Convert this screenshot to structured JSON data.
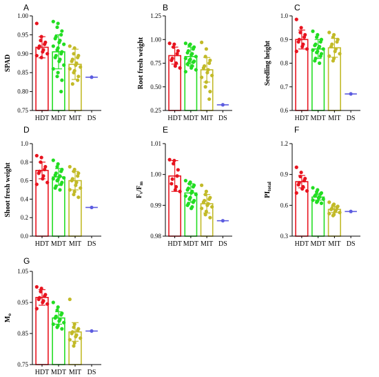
{
  "groups": [
    "HDT",
    "MDT",
    "MIT",
    "DS"
  ],
  "colors": {
    "HDT": "#e8141f",
    "MDT": "#22dd22",
    "MIT": "#c2ba28",
    "DS": "#5c5ce0",
    "axis": "#000000"
  },
  "chart_data": [
    {
      "type": "bar",
      "panel": "A",
      "ylabel": "SPAD",
      "ylim": [
        0.75,
        1.0
      ],
      "yticks": [
        "0.75",
        "0.80",
        "0.85",
        "0.90",
        "0.95",
        "1.00"
      ],
      "categories": [
        "HDT",
        "MDT",
        "MIT",
        "DS"
      ],
      "values": [
        0.917,
        0.905,
        0.872,
        0.838
      ],
      "errors": [
        0.028,
        0.045,
        0.04,
        0
      ],
      "points": [
        [
          0.98,
          0.945,
          0.935,
          0.93,
          0.925,
          0.92,
          0.915,
          0.91,
          0.905,
          0.9,
          0.895,
          0.89
        ],
        [
          0.985,
          0.98,
          0.97,
          0.96,
          0.95,
          0.945,
          0.94,
          0.935,
          0.93,
          0.925,
          0.92,
          0.915,
          0.91,
          0.905,
          0.9,
          0.895,
          0.89,
          0.885,
          0.88,
          0.87,
          0.86,
          0.85,
          0.84,
          0.83,
          0.8
        ],
        [
          0.92,
          0.915,
          0.9,
          0.895,
          0.89,
          0.885,
          0.88,
          0.875,
          0.87,
          0.865,
          0.86,
          0.855,
          0.85,
          0.84,
          0.83,
          0.82
        ],
        [
          0.838
        ]
      ]
    },
    {
      "type": "bar",
      "panel": "B",
      "ylabel": "Root fresh weight",
      "ylim": [
        0.25,
        1.25
      ],
      "yticks": [
        "0.25",
        "0.50",
        "0.75",
        "1.00",
        "1.25"
      ],
      "categories": [
        "HDT",
        "MDT",
        "MIT",
        "DS"
      ],
      "values": [
        0.83,
        0.82,
        0.68,
        0.31
      ],
      "errors": [
        0.09,
        0.1,
        0.13,
        0
      ],
      "points": [
        [
          0.96,
          0.95,
          0.92,
          0.88,
          0.85,
          0.8,
          0.78,
          0.75,
          0.72,
          0.7
        ],
        [
          0.96,
          0.95,
          0.94,
          0.92,
          0.9,
          0.88,
          0.86,
          0.85,
          0.84,
          0.82,
          0.8,
          0.79,
          0.78,
          0.77,
          0.76,
          0.75,
          0.74,
          0.72,
          0.7,
          0.68,
          0.66
        ],
        [
          0.97,
          0.9,
          0.82,
          0.78,
          0.75,
          0.72,
          0.7,
          0.68,
          0.65,
          0.62,
          0.6,
          0.55,
          0.5,
          0.45,
          0.37
        ],
        [
          0.31
        ]
      ]
    },
    {
      "type": "bar",
      "panel": "C",
      "ylabel": "Seedling height",
      "ylim": [
        0.6,
        1.0
      ],
      "yticks": [
        "0.6",
        "0.7",
        "0.8",
        "0.9",
        "1.0"
      ],
      "categories": [
        "HDT",
        "MDT",
        "MIT",
        "DS"
      ],
      "values": [
        0.9,
        0.86,
        0.865,
        0.67
      ],
      "errors": [
        0.04,
        0.04,
        0.04,
        0
      ],
      "points": [
        [
          0.985,
          0.95,
          0.93,
          0.92,
          0.91,
          0.9,
          0.89,
          0.88,
          0.87,
          0.86,
          0.85
        ],
        [
          0.935,
          0.92,
          0.91,
          0.9,
          0.89,
          0.88,
          0.875,
          0.87,
          0.865,
          0.86,
          0.855,
          0.85,
          0.845,
          0.84,
          0.83,
          0.82,
          0.81,
          0.8
        ],
        [
          0.93,
          0.92,
          0.91,
          0.9,
          0.89,
          0.88,
          0.87,
          0.86,
          0.85,
          0.84,
          0.83,
          0.82,
          0.81
        ],
        [
          0.67
        ]
      ]
    },
    {
      "type": "bar",
      "panel": "D",
      "ylabel": "Shoot fresh weight",
      "ylim": [
        0.0,
        1.0
      ],
      "yticks": [
        "0.0",
        "0.2",
        "0.4",
        "0.6",
        "0.8",
        "1.0"
      ],
      "categories": [
        "HDT",
        "MDT",
        "MIT",
        "DS"
      ],
      "values": [
        0.71,
        0.64,
        0.6,
        0.31
      ],
      "errors": [
        0.09,
        0.09,
        0.1,
        0
      ],
      "points": [
        [
          0.87,
          0.85,
          0.8,
          0.75,
          0.72,
          0.7,
          0.68,
          0.65,
          0.62,
          0.58,
          0.56
        ],
        [
          0.82,
          0.78,
          0.75,
          0.72,
          0.7,
          0.68,
          0.66,
          0.65,
          0.64,
          0.63,
          0.62,
          0.61,
          0.6,
          0.58,
          0.56,
          0.54,
          0.52,
          0.5
        ],
        [
          0.75,
          0.72,
          0.7,
          0.68,
          0.65,
          0.62,
          0.6,
          0.58,
          0.55,
          0.52,
          0.5,
          0.48,
          0.45,
          0.42
        ],
        [
          0.31
        ]
      ]
    },
    {
      "type": "bar",
      "panel": "E",
      "ylabel_main": "F",
      "ylabel_sub1": "v",
      "ylabel_mid": "/F",
      "ylabel_sub2": "m",
      "ylim": [
        0.98,
        1.01
      ],
      "yticks": [
        "0.98",
        "0.99",
        "1.00",
        "1.01"
      ],
      "categories": [
        "HDT",
        "MDT",
        "MIT",
        "DS"
      ],
      "values": [
        0.9995,
        0.994,
        0.9905,
        0.985
      ],
      "errors": [
        0.005,
        0.003,
        0.003,
        0
      ],
      "points": [
        [
          1.0048,
          1.0045,
          1.0035,
          1.0015,
          0.9995,
          0.9985,
          0.997,
          0.996,
          0.995,
          0.9945
        ],
        [
          0.998,
          0.9975,
          0.997,
          0.9965,
          0.996,
          0.9955,
          0.995,
          0.9945,
          0.994,
          0.9935,
          0.993,
          0.9925,
          0.992,
          0.9915,
          0.991,
          0.9905,
          0.99,
          0.9895,
          0.989
        ],
        [
          0.9965,
          0.9945,
          0.9935,
          0.9925,
          0.992,
          0.9915,
          0.991,
          0.9905,
          0.99,
          0.9895,
          0.989,
          0.988,
          0.987,
          0.986
        ],
        [
          0.985
        ]
      ]
    },
    {
      "type": "bar",
      "panel": "F",
      "ylabel_main": "PI",
      "ylabel_sub": "total",
      "ylim": [
        0.3,
        1.2
      ],
      "yticks": [
        "0.3",
        "0.6",
        "0.9",
        "1.2"
      ],
      "categories": [
        "HDT",
        "MDT",
        "MIT",
        "DS"
      ],
      "values": [
        0.83,
        0.68,
        0.56,
        0.54
      ],
      "errors": [
        0.06,
        0.03,
        0.03,
        0
      ],
      "points": [
        [
          0.97,
          0.92,
          0.88,
          0.86,
          0.84,
          0.82,
          0.8,
          0.78,
          0.76,
          0.74,
          0.72
        ],
        [
          0.77,
          0.75,
          0.73,
          0.72,
          0.71,
          0.7,
          0.69,
          0.68,
          0.67,
          0.66,
          0.65,
          0.64,
          0.63,
          0.62
        ],
        [
          0.63,
          0.61,
          0.6,
          0.59,
          0.58,
          0.57,
          0.56,
          0.55,
          0.54,
          0.53,
          0.52,
          0.51,
          0.5
        ],
        [
          0.54
        ]
      ]
    },
    {
      "type": "bar",
      "panel": "G",
      "ylabel_main": "M",
      "ylabel_sub": "o",
      "ylim": [
        0.75,
        1.05
      ],
      "yticks": [
        "0.75",
        "0.85",
        "0.95",
        "1.05"
      ],
      "categories": [
        "HDT",
        "MDT",
        "MIT",
        "DS"
      ],
      "values": [
        0.966,
        0.9,
        0.855,
        0.858
      ],
      "errors": [
        0.025,
        0.02,
        0.03,
        0
      ],
      "points": [
        [
          1.0,
          0.995,
          0.985,
          0.975,
          0.97,
          0.965,
          0.96,
          0.955,
          0.95,
          0.945,
          0.93
        ],
        [
          0.95,
          0.935,
          0.925,
          0.915,
          0.91,
          0.905,
          0.9,
          0.895,
          0.89,
          0.885,
          0.88,
          0.875,
          0.87,
          0.865
        ],
        [
          0.96,
          0.88,
          0.87,
          0.865,
          0.86,
          0.855,
          0.85,
          0.845,
          0.84,
          0.835,
          0.83,
          0.82,
          0.81
        ],
        [
          0.858
        ]
      ]
    }
  ]
}
